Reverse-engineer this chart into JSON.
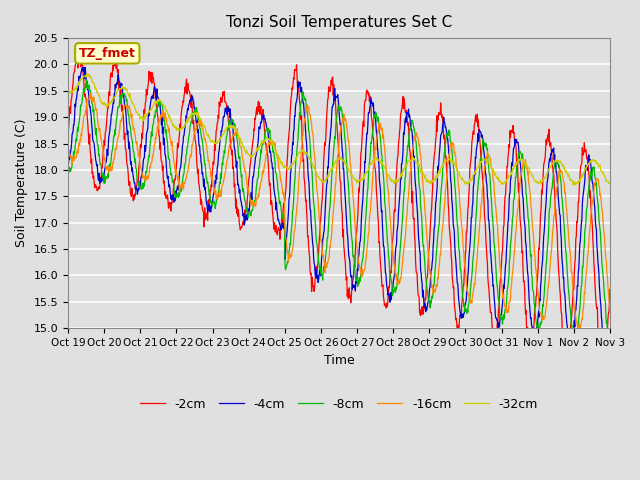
{
  "title": "Tonzi Soil Temperatures Set C",
  "xlabel": "Time",
  "ylabel": "Soil Temperature (C)",
  "ylim": [
    15.0,
    20.5
  ],
  "series_colors": [
    "#ff0000",
    "#0000cc",
    "#00bb00",
    "#ff8800",
    "#cccc00"
  ],
  "series_labels": [
    "-2cm",
    "-4cm",
    "-8cm",
    "-16cm",
    "-32cm"
  ],
  "annotation_text": "TZ_fmet",
  "annotation_bg": "#ffffcc",
  "annotation_border": "#aaaa00",
  "x_tick_labels": [
    "Oct 19",
    "Oct 20",
    "Oct 21",
    "Oct 22",
    "Oct 23",
    "Oct 24",
    "Oct 25",
    "Oct 26",
    "Oct 27",
    "Oct 28",
    "Oct 29",
    "Oct 30",
    "Oct 31",
    "Nov 1",
    "Nov 2",
    "Nov 3"
  ],
  "background_color": "#e0e0e0",
  "grid_color": "#ffffff",
  "figsize": [
    6.4,
    4.8
  ],
  "dpi": 100
}
